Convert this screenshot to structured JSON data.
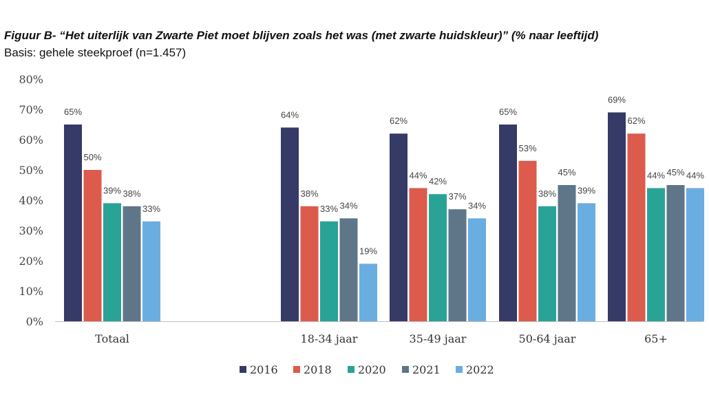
{
  "header": {
    "title": "Figuur B- “Het uiterlijk van Zwarte Piet moet blijven zoals het was (met zwarte huidskleur)” (% naar leeftijd)",
    "subtitle": "Basis: gehele steekproef (n=1.457)"
  },
  "chart_data": {
    "type": "bar",
    "title": "Figuur B- “Het uiterlijk van Zwarte Piet moet blijven zoals het was (met zwarte huidskleur)” (% naar leeftijd)",
    "subtitle": "Basis: gehele steekproef (n=1.457)",
    "xlabel": "",
    "ylabel": "",
    "ylim": [
      0,
      80
    ],
    "yticks": [
      "0%",
      "10%",
      "20%",
      "30%",
      "40%",
      "50%",
      "60%",
      "70%",
      "80%"
    ],
    "grid": false,
    "legend_position": "bottom",
    "categories": [
      "Totaal",
      "18-34 jaar",
      "35-49 jaar",
      "50-64 jaar",
      "65+"
    ],
    "series": [
      {
        "name": "2016",
        "color": "#363a66",
        "values": [
          65,
          64,
          62,
          65,
          69
        ],
        "labels": [
          "65%",
          "64%",
          "62%",
          "65%",
          "69%"
        ]
      },
      {
        "name": "2018",
        "color": "#dc5b4c",
        "values": [
          50,
          38,
          44,
          53,
          62
        ],
        "labels": [
          "50%",
          "38%",
          "44%",
          "53%",
          "62%"
        ]
      },
      {
        "name": "2020",
        "color": "#2aa397",
        "values": [
          39,
          33,
          42,
          38,
          44
        ],
        "labels": [
          "39%",
          "33%",
          "42%",
          "38%",
          "44%"
        ]
      },
      {
        "name": "2021",
        "color": "#5f7689",
        "values": [
          38,
          34,
          37,
          45,
          45
        ],
        "labels": [
          "38%",
          "34%",
          "37%",
          "45%",
          "45%"
        ]
      },
      {
        "name": "2022",
        "color": "#6aade0",
        "values": [
          33,
          19,
          34,
          39,
          44
        ],
        "labels": [
          "33%",
          "19%",
          "34%",
          "39%",
          "44%"
        ]
      }
    ]
  }
}
